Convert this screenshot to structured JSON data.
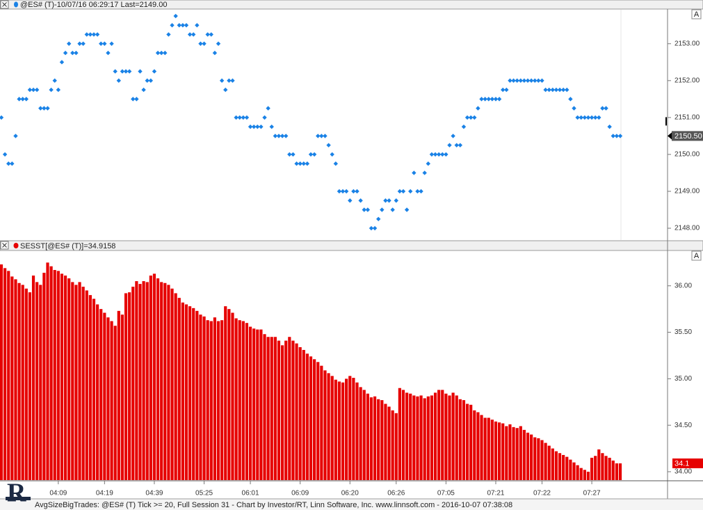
{
  "chart_data": [
    {
      "type": "dot",
      "header": "@ES# (T)-10/07/16 06:29:17 Last=2149.00",
      "autoscale": "A",
      "color": "#1a82e6",
      "ylim": [
        2147.68,
        2153.92
      ],
      "yticks": [
        {
          "value": 2148,
          "label": "2148.00"
        },
        {
          "value": 2149,
          "label": "2149.00"
        },
        {
          "value": 2150,
          "label": "2150.00"
        },
        {
          "value": 2151,
          "label": "2151.00"
        },
        {
          "value": 2152,
          "label": "2152.00"
        },
        {
          "value": 2153,
          "label": "2153.00"
        }
      ],
      "last": {
        "value": 2150.5,
        "label": "2150.50"
      },
      "values": [
        2151,
        2150,
        2149.75,
        2149.75,
        2150.5,
        2151.5,
        2151.5,
        2151.5,
        2151.75,
        2151.75,
        2151.75,
        2151.25,
        2151.25,
        2151.25,
        2151.75,
        2152,
        2151.75,
        2152.5,
        2152.75,
        2153,
        2152.75,
        2152.75,
        2153,
        2153,
        2153.25,
        2153.25,
        2153.25,
        2153.25,
        2153,
        2153,
        2152.75,
        2153,
        2152.25,
        2152,
        2152.25,
        2152.25,
        2152.25,
        2151.5,
        2151.5,
        2152.25,
        2151.75,
        2152,
        2152,
        2152.25,
        2152.75,
        2152.75,
        2152.75,
        2153.25,
        2153.5,
        2153.75,
        2153.5,
        2153.5,
        2153.5,
        2153.25,
        2153.25,
        2153.5,
        2153,
        2153,
        2153.25,
        2153.25,
        2152.75,
        2153,
        2152,
        2151.75,
        2152,
        2152,
        2151,
        2151,
        2151,
        2151,
        2150.75,
        2150.75,
        2150.75,
        2150.75,
        2151,
        2151.25,
        2150.75,
        2150.5,
        2150.5,
        2150.5,
        2150.5,
        2150,
        2150,
        2149.75,
        2149.75,
        2149.75,
        2149.75,
        2150,
        2150,
        2150.5,
        2150.5,
        2150.5,
        2150.25,
        2150,
        2149.75,
        2149,
        2149,
        2149,
        2148.75,
        2149,
        2149,
        2148.75,
        2148.5,
        2148.5,
        2148,
        2148,
        2148.25,
        2148.5,
        2148.75,
        2148.75,
        2148.5,
        2148.75,
        2149,
        2149,
        2148.5,
        2149,
        2149.5,
        2149,
        2149,
        2149.5,
        2149.75,
        2150,
        2150,
        2150,
        2150,
        2150,
        2150.25,
        2150.5,
        2150.25,
        2150.25,
        2150.75,
        2151,
        2151,
        2151,
        2151.25,
        2151.5,
        2151.5,
        2151.5,
        2151.5,
        2151.5,
        2151.5,
        2151.75,
        2151.75,
        2152,
        2152,
        2152,
        2152,
        2152,
        2152,
        2152,
        2152,
        2152,
        2152,
        2151.75,
        2151.75,
        2151.75,
        2151.75,
        2151.75,
        2151.75,
        2151.75,
        2151.5,
        2151.25,
        2151,
        2151,
        2151,
        2151,
        2151,
        2151,
        2151,
        2151.25,
        2151.25,
        2150.75,
        2150.5,
        2150.5,
        2150.5
      ]
    },
    {
      "type": "bar",
      "header": "SESST[@ES# (T)]=34.9158",
      "autoscale": "A",
      "color": "#e60000",
      "ylim": [
        33.91,
        36.38
      ],
      "yticks": [
        {
          "value": 34,
          "label": "34.00"
        },
        {
          "value": 34.5,
          "label": "34.50"
        },
        {
          "value": 35,
          "label": "35.00"
        },
        {
          "value": 35.5,
          "label": "35.50"
        },
        {
          "value": 36,
          "label": "36.00"
        }
      ],
      "last": {
        "value": 34.09,
        "label": "34.1"
      },
      "categories": [
        null,
        null,
        null,
        null,
        null,
        null,
        null,
        null,
        null,
        null,
        null,
        null,
        null,
        null,
        null,
        null,
        "04:09",
        null,
        null,
        null,
        null,
        null,
        null,
        null,
        null,
        null,
        null,
        null,
        null,
        "04:19",
        null,
        null,
        null,
        null,
        null,
        null,
        null,
        null,
        null,
        null,
        null,
        null,
        null,
        "04:39",
        null,
        null,
        null,
        null,
        null,
        null,
        null,
        null,
        null,
        null,
        null,
        null,
        null,
        "05:25",
        null,
        null,
        null,
        null,
        null,
        null,
        null,
        null,
        null,
        null,
        null,
        null,
        "06:01",
        null,
        null,
        null,
        null,
        null,
        null,
        null,
        null,
        null,
        null,
        null,
        null,
        null,
        "06:09",
        null,
        null,
        null,
        null,
        null,
        null,
        null,
        null,
        null,
        null,
        null,
        null,
        null,
        "06:20",
        null,
        null,
        null,
        null,
        null,
        null,
        null,
        null,
        null,
        null,
        null,
        null,
        "06:26",
        null,
        null,
        null,
        null,
        null,
        null,
        null,
        null,
        null,
        null,
        null,
        null,
        null,
        "07:05",
        null,
        null,
        null,
        null,
        null,
        null,
        null,
        null,
        null,
        null,
        null,
        null,
        null,
        "07:21",
        null,
        null,
        null,
        null,
        null,
        null,
        null,
        null,
        null,
        null,
        null,
        null,
        "07:22",
        null,
        null,
        null,
        null,
        null,
        null,
        null,
        null,
        null,
        null,
        null,
        null,
        null,
        "07:27",
        null,
        null,
        null,
        null,
        null,
        null,
        null,
        null
      ],
      "values": [
        36.23,
        36.19,
        36.16,
        36.1,
        36.07,
        36.03,
        36.01,
        35.97,
        35.93,
        36.11,
        36.04,
        36.01,
        36.14,
        36.25,
        36.21,
        36.17,
        36.16,
        36.13,
        36.11,
        36.08,
        36.04,
        36.01,
        36.04,
        35.99,
        35.95,
        35.9,
        35.86,
        35.8,
        35.75,
        35.71,
        35.66,
        35.62,
        35.57,
        35.73,
        35.69,
        35.92,
        35.93,
        35.99,
        36.05,
        36.02,
        36.05,
        36.04,
        36.11,
        36.13,
        36.08,
        36.04,
        36.03,
        36.01,
        35.97,
        35.92,
        35.87,
        35.82,
        35.8,
        35.78,
        35.76,
        35.73,
        35.69,
        35.67,
        35.63,
        35.62,
        35.66,
        35.62,
        35.63,
        35.78,
        35.75,
        35.71,
        35.65,
        35.63,
        35.62,
        35.6,
        35.56,
        35.54,
        35.53,
        35.53,
        35.48,
        35.45,
        35.45,
        35.45,
        35.41,
        35.36,
        35.41,
        35.45,
        35.41,
        35.38,
        35.34,
        35.31,
        35.27,
        35.24,
        35.21,
        35.18,
        35.14,
        35.09,
        35.06,
        35.03,
        34.99,
        34.97,
        34.96,
        35.0,
        35.03,
        35.01,
        34.96,
        34.91,
        34.88,
        34.84,
        34.8,
        34.81,
        34.78,
        34.77,
        34.73,
        34.7,
        34.66,
        34.63,
        34.9,
        34.88,
        34.85,
        34.84,
        34.82,
        34.81,
        34.82,
        34.79,
        34.81,
        34.82,
        34.85,
        34.88,
        34.88,
        34.84,
        34.82,
        34.85,
        34.82,
        34.78,
        34.77,
        34.73,
        34.72,
        34.66,
        34.64,
        34.61,
        34.58,
        34.58,
        34.56,
        34.54,
        34.53,
        34.52,
        34.49,
        34.51,
        34.48,
        34.47,
        34.49,
        34.45,
        34.42,
        34.4,
        34.37,
        34.36,
        34.34,
        34.31,
        34.28,
        34.25,
        34.22,
        34.2,
        34.18,
        34.16,
        34.13,
        34.1,
        34.07,
        34.04,
        34.02,
        34.0,
        34.15,
        34.17,
        34.24,
        34.2,
        34.17,
        34.15,
        34.12,
        34.09,
        34.09
      ]
    }
  ],
  "logo": "R",
  "footer": "AvgSizeBigTrades: @ES# (T) Tick >= 20, Full Session 31 - Chart by Investor/RT, Linn Software, Inc. www.linnsoft.com - 2016-10-07 07:38:08"
}
